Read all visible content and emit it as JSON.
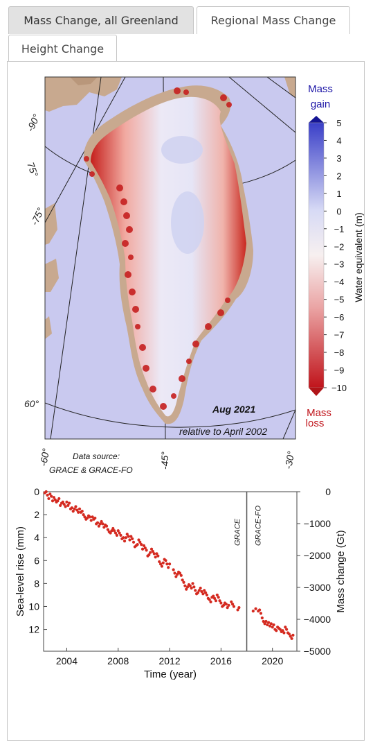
{
  "tabs": [
    {
      "label": "Mass Change, all Greenland",
      "active": true
    },
    {
      "label": "Regional Mass Change",
      "active": false
    },
    {
      "label": "Height Change",
      "active": false
    }
  ],
  "map": {
    "date_label": "Aug 2021",
    "relative_label": "relative to April 2002",
    "source_title": "Data source:",
    "source_name": "GRACE & GRACE-FO",
    "lat_labels": [
      "75°",
      "60°"
    ],
    "lon_labels": [
      "-90°",
      "-75°",
      "-60°",
      "-45°",
      "-30°"
    ],
    "colorbar": {
      "top_label_1": "Mass",
      "top_label_2": "gain",
      "bottom_label_1": "Mass",
      "bottom_label_2": "loss",
      "axis_label": "Water equivalent (m)",
      "ticks": [
        "5",
        "4",
        "3",
        "2",
        "1",
        "0",
        "−1",
        "−2",
        "−3",
        "−4",
        "−5",
        "−6",
        "−7",
        "−8",
        "−9",
        "−10"
      ],
      "gain_color": "#1b14a6",
      "loss_color": "#c0141b"
    }
  },
  "chart_data": {
    "type": "scatter",
    "xlabel": "Time (year)",
    "ylabel": "Sea-level rise (mm)",
    "ylabel_right": "Mass change (Gt)",
    "xlim": [
      2002.2,
      2021.9
    ],
    "ylim_left": [
      0,
      13.9
    ],
    "ylim_right": [
      0,
      -5000
    ],
    "x_ticks": [
      "2004",
      "2008",
      "2012",
      "2016",
      "2020"
    ],
    "y_ticks_left": [
      "0",
      "2",
      "4",
      "6",
      "8",
      "10",
      "12"
    ],
    "y_ticks_right": [
      "0",
      "−1000",
      "−2000",
      "−3000",
      "−4000",
      "−5000"
    ],
    "annotations": [
      "GRACE",
      "GRACE-FO"
    ],
    "gap_divider_x": 2018.0,
    "series": [
      {
        "color": "#d42a20",
        "x": [
          2002.3,
          2002.4,
          2002.5,
          2002.6,
          2002.7,
          2002.8,
          2002.9,
          2003.0,
          2003.1,
          2003.2,
          2003.3,
          2003.4,
          2003.5,
          2003.6,
          2003.7,
          2003.8,
          2003.9,
          2004.0,
          2004.1,
          2004.2,
          2004.3,
          2004.4,
          2004.5,
          2004.6,
          2004.7,
          2004.8,
          2004.9,
          2005.0,
          2005.1,
          2005.2,
          2005.3,
          2005.4,
          2005.5,
          2005.6,
          2005.7,
          2005.8,
          2005.9,
          2006.0,
          2006.1,
          2006.2,
          2006.3,
          2006.4,
          2006.5,
          2006.6,
          2006.7,
          2006.8,
          2006.9,
          2007.0,
          2007.1,
          2007.2,
          2007.3,
          2007.4,
          2007.5,
          2007.6,
          2007.7,
          2007.8,
          2007.9,
          2008.0,
          2008.1,
          2008.2,
          2008.3,
          2008.4,
          2008.5,
          2008.6,
          2008.7,
          2008.8,
          2008.9,
          2009.0,
          2009.1,
          2009.2,
          2009.3,
          2009.4,
          2009.5,
          2009.6,
          2009.7,
          2009.8,
          2009.9,
          2010.0,
          2010.1,
          2010.2,
          2010.3,
          2010.4,
          2010.5,
          2010.6,
          2010.7,
          2010.8,
          2010.9,
          2011.0,
          2011.1,
          2011.2,
          2011.3,
          2011.4,
          2011.5,
          2011.6,
          2011.7,
          2011.8,
          2011.9,
          2012.0,
          2012.3,
          2012.4,
          2012.5,
          2012.6,
          2012.7,
          2012.8,
          2012.9,
          2013.0,
          2013.1,
          2013.2,
          2013.3,
          2013.4,
          2013.5,
          2013.6,
          2013.7,
          2013.8,
          2013.9,
          2014.0,
          2014.1,
          2014.2,
          2014.3,
          2014.4,
          2014.5,
          2014.6,
          2014.7,
          2014.8,
          2014.9,
          2015.0,
          2015.1,
          2015.2,
          2015.3,
          2015.4,
          2015.5,
          2015.6,
          2015.7,
          2015.8,
          2015.9,
          2016.0,
          2016.1,
          2016.2,
          2016.3,
          2016.4,
          2016.5,
          2016.6,
          2016.8,
          2016.9,
          2017.0,
          2017.3,
          2017.4,
          2018.5,
          2018.7,
          2018.9,
          2019.0,
          2019.1,
          2019.2,
          2019.3,
          2019.4,
          2019.5,
          2019.6,
          2019.7,
          2019.8,
          2019.9,
          2020.0,
          2020.1,
          2020.2,
          2020.3,
          2020.4,
          2020.5,
          2020.6,
          2020.7,
          2020.8,
          2020.9,
          2021.0,
          2021.1,
          2021.2,
          2021.3,
          2021.4,
          2021.5,
          2021.6
        ],
        "y": [
          0.1,
          0.0,
          0.3,
          0.6,
          0.2,
          0.4,
          0.8,
          0.5,
          0.7,
          0.9,
          0.8,
          0.6,
          1.2,
          1.0,
          0.9,
          1.1,
          1.3,
          0.9,
          1.2,
          1.0,
          1.5,
          1.4,
          1.7,
          1.5,
          1.3,
          1.6,
          1.8,
          1.5,
          1.8,
          1.7,
          2.0,
          2.2,
          2.4,
          2.3,
          2.1,
          2.2,
          2.5,
          2.2,
          2.4,
          2.3,
          2.8,
          2.7,
          3.0,
          2.8,
          2.6,
          2.8,
          3.1,
          2.9,
          3.0,
          3.3,
          3.5,
          3.6,
          3.4,
          3.2,
          3.4,
          3.6,
          3.8,
          3.4,
          3.6,
          3.8,
          4.1,
          4.0,
          4.3,
          4.0,
          3.7,
          3.9,
          4.2,
          3.9,
          4.1,
          4.4,
          4.8,
          4.7,
          4.6,
          4.2,
          4.4,
          4.6,
          5.0,
          4.7,
          4.9,
          5.1,
          5.6,
          5.5,
          5.3,
          5.0,
          5.2,
          5.4,
          5.7,
          5.4,
          5.6,
          6.1,
          6.3,
          6.5,
          6.2,
          5.9,
          6.0,
          6.3,
          6.6,
          6.3,
          6.8,
          7.1,
          7.4,
          7.2,
          7.0,
          7.1,
          7.3,
          7.7,
          7.9,
          8.2,
          8.5,
          8.3,
          8.1,
          8.2,
          8.4,
          8.0,
          8.3,
          8.6,
          8.9,
          8.8,
          8.6,
          8.4,
          8.7,
          8.9,
          8.6,
          8.8,
          9.0,
          9.3,
          9.4,
          9.6,
          9.2,
          9.1,
          9.3,
          9.5,
          9.0,
          9.2,
          9.5,
          9.7,
          10.0,
          9.9,
          9.7,
          9.8,
          10.1,
          9.9,
          9.6,
          9.8,
          10.0,
          10.3,
          10.1,
          10.4,
          10.2,
          10.4,
          10.3,
          10.6,
          11.0,
          11.3,
          11.5,
          11.3,
          11.6,
          11.4,
          11.7,
          11.5,
          11.8,
          11.6,
          12.0,
          12.1,
          11.8,
          11.9,
          12.0,
          12.2,
          12.1,
          12.3,
          11.8,
          12.0,
          12.3,
          12.4,
          12.6,
          12.8,
          12.5
        ]
      }
    ]
  }
}
